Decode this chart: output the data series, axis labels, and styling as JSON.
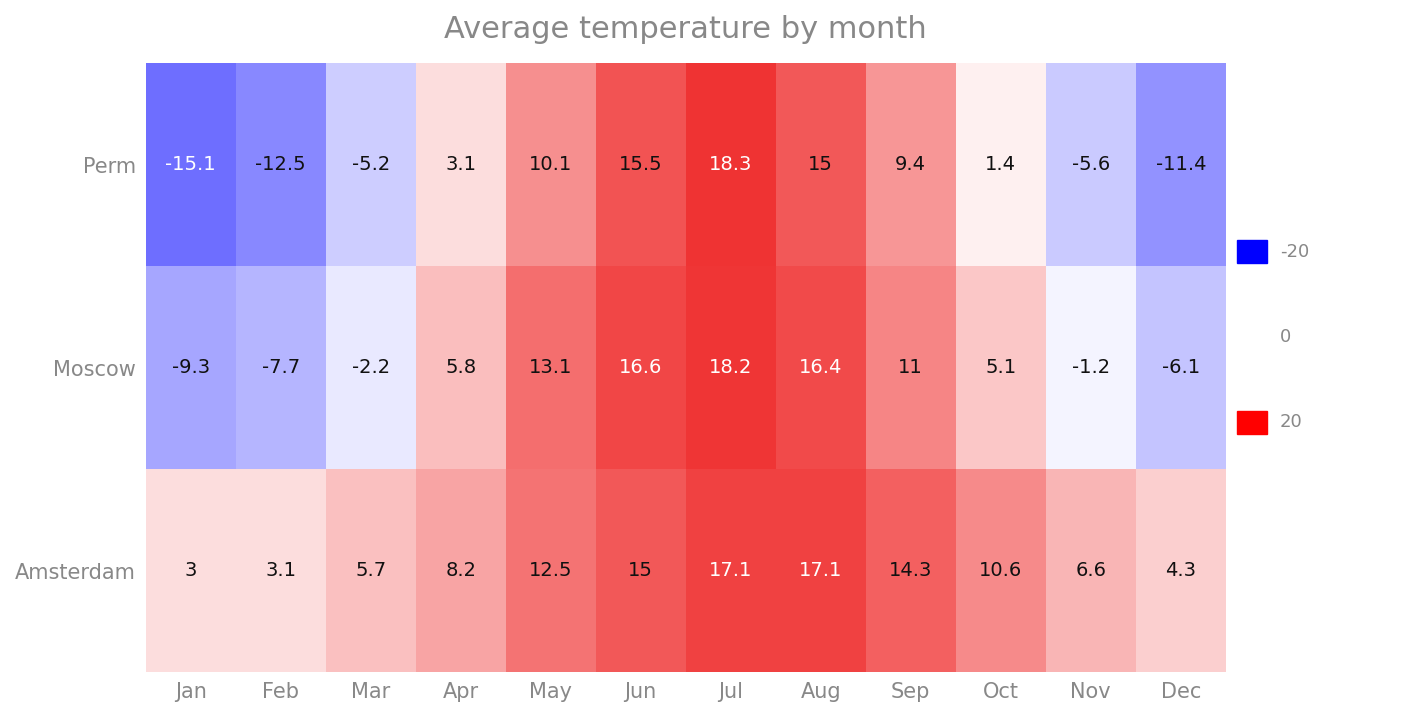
{
  "title": "Average temperature by month",
  "cities": [
    "Perm",
    "Moscow",
    "Amsterdam"
  ],
  "months": [
    "Jan",
    "Feb",
    "Mar",
    "Apr",
    "May",
    "Jun",
    "Jul",
    "Aug",
    "Sep",
    "Oct",
    "Nov",
    "Dec"
  ],
  "values": [
    [
      -15.1,
      -12.5,
      -5.2,
      3.1,
      10.1,
      15.5,
      18.3,
      15,
      9.4,
      1.4,
      -5.6,
      -11.4
    ],
    [
      -9.3,
      -7.7,
      -2.2,
      5.8,
      13.1,
      16.6,
      18.2,
      16.4,
      11,
      5.1,
      -1.2,
      -6.1
    ],
    [
      3,
      3.1,
      5.7,
      8.2,
      12.5,
      15,
      17.1,
      17.1,
      14.3,
      10.6,
      6.6,
      4.3
    ]
  ],
  "value_labels": [
    [
      "-15.1",
      "-12.5",
      "-5.2",
      "3.1",
      "10.1",
      "15.5",
      "18.3",
      "15",
      "9.4",
      "1.4",
      "-5.6",
      "-11.4"
    ],
    [
      "-9.3",
      "-7.7",
      "-2.2",
      "5.8",
      "13.1",
      "16.6",
      "18.2",
      "16.4",
      "11",
      "5.1",
      "-1.2",
      "-6.1"
    ],
    [
      "3",
      "3.1",
      "5.7",
      "8.2",
      "12.5",
      "15",
      "17.1",
      "17.1",
      "14.3",
      "10.6",
      "6.6",
      "4.3"
    ]
  ],
  "vmin": -20,
  "vmax": 20,
  "cmap_colors": [
    [
      0.0,
      "#4040ff"
    ],
    [
      0.5,
      "#ffffff"
    ],
    [
      1.0,
      "#ee2222"
    ]
  ],
  "legend_blue": "#0000ff",
  "legend_red": "#ff0000",
  "legend_labels": [
    "-20",
    "0",
    "20"
  ],
  "title_fontsize": 22,
  "label_fontsize": 15,
  "value_fontsize": 14,
  "background_color": "#ffffff",
  "title_color": "#888888",
  "tick_color": "#888888"
}
